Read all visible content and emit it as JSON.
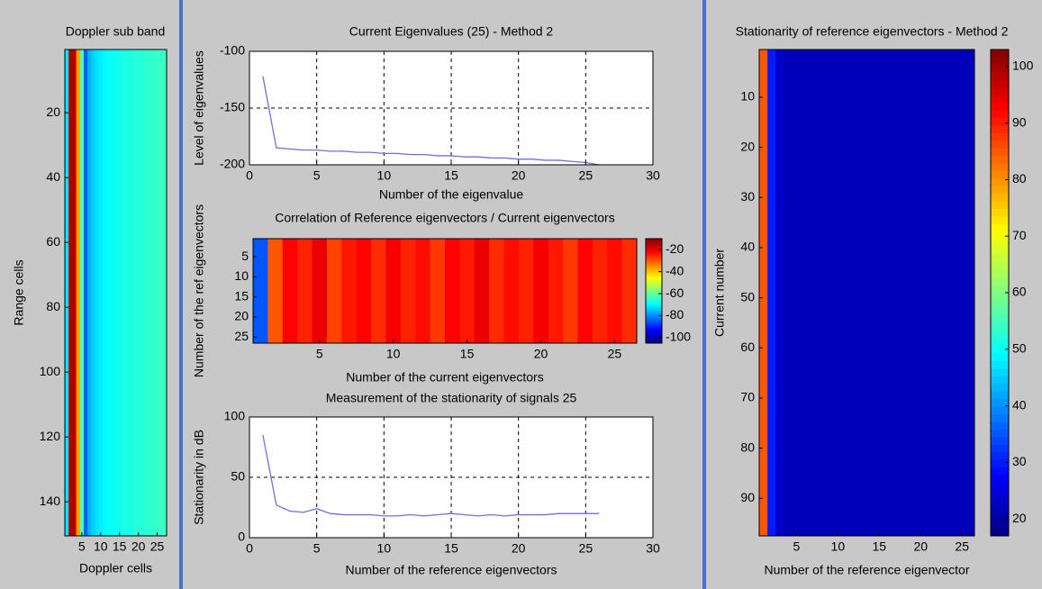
{
  "chart_data": [
    {
      "type": "heatmap",
      "title": "Doppler sub band",
      "xlabel": "Doppler cells",
      "ylabel": "Range cells",
      "xlim": [
        0.5,
        27.5
      ],
      "ylim": [
        0.5,
        150.5
      ],
      "xticks": [
        5,
        10,
        15,
        20,
        25
      ],
      "yticks": [
        20,
        40,
        60,
        80,
        100,
        120,
        140
      ],
      "clim": [
        0,
        1
      ],
      "values": [
        0.35,
        0.95,
        0.95,
        0.72,
        0.45,
        0.22,
        0.3,
        0.33,
        0.35,
        0.36,
        0.37,
        0.38,
        0.38,
        0.39,
        0.39,
        0.4,
        0.4,
        0.4,
        0.41,
        0.41,
        0.41,
        0.42,
        0.42,
        0.42,
        0.43,
        0.43,
        0.43
      ]
    },
    {
      "type": "line",
      "title": "Current Eigenvalues (25) - Method 2",
      "xlabel": "Number of the eigenvalue",
      "ylabel": "Level of eigenvalues",
      "xlim": [
        0,
        30
      ],
      "ylim": [
        -200,
        -100
      ],
      "xticks": [
        0,
        5,
        10,
        15,
        20,
        25,
        30
      ],
      "yticks": [
        -200,
        -150,
        -100
      ],
      "grid": true,
      "color": "#6f6fe0",
      "x": [
        1,
        2,
        3,
        4,
        5,
        6,
        7,
        8,
        9,
        10,
        11,
        12,
        13,
        14,
        15,
        16,
        17,
        18,
        19,
        20,
        21,
        22,
        23,
        24,
        25,
        26
      ],
      "values": [
        -122,
        -185,
        -186,
        -187,
        -187,
        -188,
        -188,
        -189,
        -189,
        -190,
        -190,
        -191,
        -191,
        -192,
        -192,
        -193,
        -193,
        -194,
        -194,
        -195,
        -195,
        -196,
        -196,
        -197,
        -198,
        -200
      ]
    },
    {
      "type": "heatmap",
      "title": "Correlation of Reference eigenvectors / Current eigenvectors",
      "xlabel": "Number of the current eigenvectors",
      "ylabel": "Number of the ref eigenvectors",
      "xlim": [
        0.5,
        26.5
      ],
      "ylim": [
        0.5,
        26.5
      ],
      "xticks": [
        5,
        10,
        15,
        20,
        25
      ],
      "yticks": [
        5,
        10,
        15,
        20,
        25
      ],
      "clim": [
        -105,
        -10
      ],
      "cticks": [
        -100,
        -80,
        -60,
        -40,
        -20
      ],
      "values": [
        -85,
        -30,
        -22,
        -25,
        -20,
        -28,
        -24,
        -22,
        -26,
        -21,
        -25,
        -23,
        -27,
        -22,
        -24,
        -20,
        -26,
        -23,
        -25,
        -21,
        -24,
        -27,
        -22,
        -25,
        -23,
        -26
      ]
    },
    {
      "type": "line",
      "title": "Measurement of the stationarity of signals 25",
      "xlabel": "Number of the reference eigenvectors",
      "ylabel": "Stationarity in dB",
      "xlim": [
        0,
        30
      ],
      "ylim": [
        0,
        100
      ],
      "xticks": [
        0,
        5,
        10,
        15,
        20,
        25,
        30
      ],
      "yticks": [
        0,
        50,
        100
      ],
      "grid": true,
      "color": "#6f6fe0",
      "x": [
        1,
        2,
        3,
        4,
        5,
        6,
        7,
        8,
        9,
        10,
        11,
        12,
        13,
        14,
        15,
        16,
        17,
        18,
        19,
        20,
        21,
        22,
        23,
        24,
        25,
        26
      ],
      "values": [
        85,
        27,
        22,
        21,
        24,
        20,
        19,
        19,
        19,
        18,
        18,
        19,
        18,
        19,
        20,
        19,
        18,
        19,
        18,
        19,
        19,
        19,
        20,
        20,
        20,
        20
      ]
    },
    {
      "type": "heatmap",
      "title": "Stationarity of reference eigenvectors - Method 2",
      "xlabel": "Number of the reference eigenvector",
      "ylabel": "Current number",
      "xlim": [
        0.5,
        26.5
      ],
      "ylim": [
        0.5,
        97.5
      ],
      "xticks": [
        5,
        10,
        15,
        20,
        25
      ],
      "yticks": [
        10,
        20,
        30,
        40,
        50,
        60,
        70,
        80,
        90
      ],
      "clim": [
        17,
        103
      ],
      "cticks": [
        20,
        30,
        40,
        50,
        60,
        70,
        80,
        90,
        100
      ],
      "values": [
        85,
        30,
        23,
        22,
        22,
        22,
        22,
        22,
        22,
        22,
        22,
        22,
        22,
        22,
        22,
        22,
        22,
        22,
        22,
        22,
        22,
        22,
        22,
        22,
        22,
        22
      ]
    }
  ]
}
